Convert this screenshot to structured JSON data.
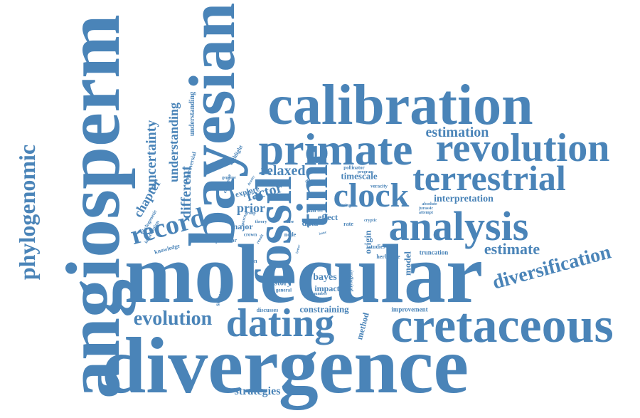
{
  "color": "#4a84b8",
  "words": {
    "molecular": "molecular",
    "divergence": "divergence",
    "angiosperm": "angiosperm",
    "bayesian": "bayesian",
    "calibration": "calibration",
    "primate": "primate",
    "revolution": "revolution",
    "fossil": "fossil",
    "time": "time",
    "analysis": "analysis",
    "terrestrial": "terrestrial",
    "cretaceous": "cretaceous",
    "dating": "dating",
    "clock": "clock",
    "record": "record",
    "phylogenomic": "phylogenomic",
    "evolution": "evolution",
    "diversification": "diversification",
    "estimate": "estimate",
    "estimation": "estimation",
    "strategies": "strategies",
    "relaxed": "relaxed",
    "factor": "factor",
    "prior": "prior",
    "chapter": "chapter",
    "different": "different",
    "uncertainty": "uncertainty",
    "understanding": "understanding",
    "understanding2": "understanding",
    "timescale": "timescale",
    "interpretation": "interpretation",
    "constraining": "constraining",
    "improvement": "improvement",
    "bayes": "bayes",
    "impact": "impact",
    "history": "history",
    "origin": "origin",
    "model": "model",
    "method": "method",
    "sequence": "sequence",
    "data": "data",
    "effect": "effect",
    "effective": "effective",
    "truncation": "truncation",
    "herbivore": "herbivore",
    "studies": "studies",
    "phylogeny": "phylogeny",
    "predator": "predator",
    "knowledge": "knowledge",
    "taxon": "taxon",
    "crown": "crown",
    "major": "major",
    "explore": "explore",
    "dataset": "dataset",
    "highlight": "highlight",
    "controversial": "controversial",
    "explosive": "explosive",
    "phylogenetic": "phylogenetic",
    "information": "information",
    "genome": "genome",
    "pollinator": "pollinator",
    "program": "program",
    "veracity": "veracity",
    "absolute": "absolute",
    "jurassic": "jurassic",
    "attempt": "attempt",
    "discusses": "discusses",
    "general": "general",
    "number": "number",
    "rate": "rate",
    "node": "node",
    "case": "case",
    "group": "group",
    "source": "source",
    "theory": "theory",
    "plant": "plant",
    "timing": "timing",
    "cryptic": "cryptic",
    "test": "test",
    "better": "better",
    "result": "result",
    "issue": "issue",
    "density": "density"
  }
}
